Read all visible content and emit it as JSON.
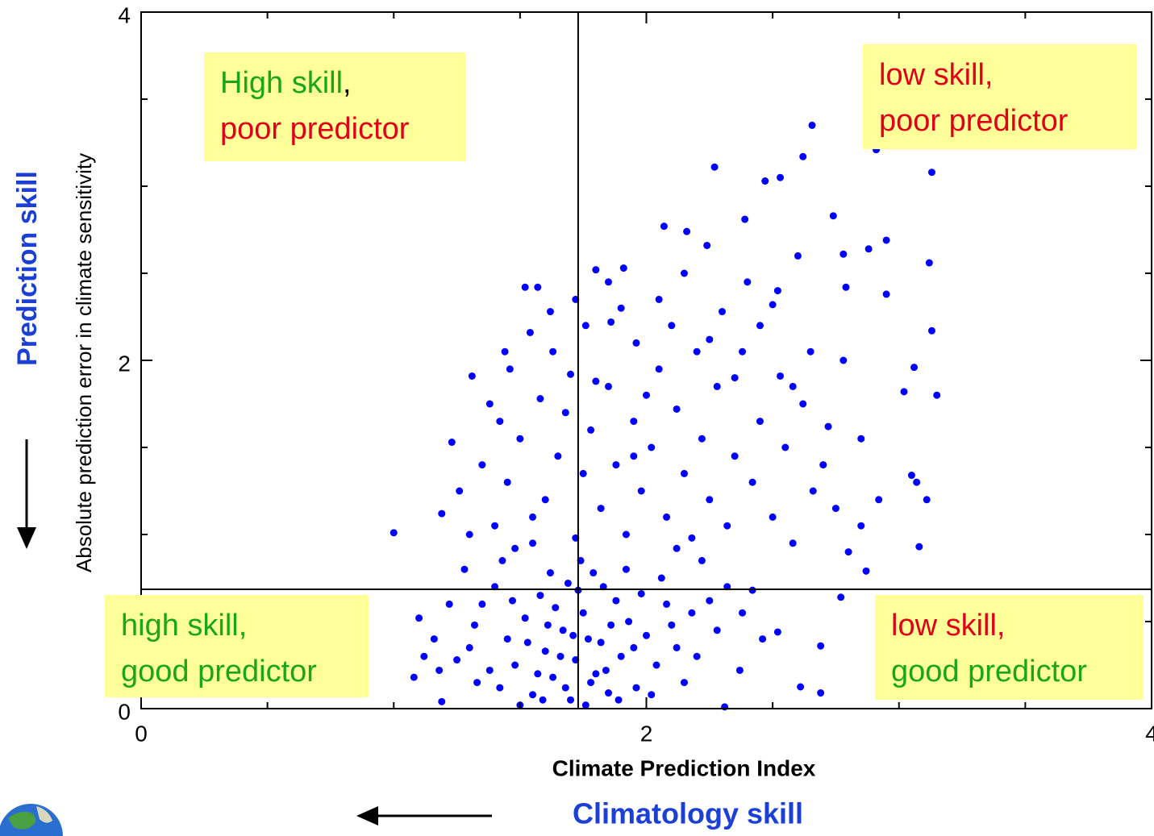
{
  "chart_data": {
    "type": "scatter",
    "xlabel": "Climate Prediction Index",
    "ylabel": "Absolute prediction error in climate sensitivity",
    "xlim": [
      0,
      4
    ],
    "ylim": [
      0,
      4
    ],
    "xticks": [
      0,
      2,
      4
    ],
    "yticks": [
      0,
      2,
      4
    ],
    "xminorticks": [
      0.5,
      1,
      1.5,
      2.5,
      3,
      3.5
    ],
    "yminorticks": [
      0.5,
      1,
      1.5,
      2.5,
      3,
      3.5
    ],
    "reference_lines": {
      "x": 1.73,
      "y": 0.685
    },
    "color": "#0000ff",
    "x": [
      2.656,
      2.27,
      2.62,
      3.13,
      2.47,
      2.53,
      2.91,
      2.39,
      2.74,
      2.07,
      2.16,
      2.24,
      2.95,
      2.88,
      2.78,
      3.12,
      1.8,
      1.91,
      1.52,
      1.57,
      1.72,
      2.79,
      2.95,
      1.54,
      3.13,
      3.06,
      3.15,
      3.02,
      2.53,
      1.31,
      1.23,
      1.0,
      1.19,
      3.08,
      2.69,
      2.69,
      2.61,
      2.31,
      1.19,
      2.87,
      2.77,
      3.05,
      3.07,
      3.11,
      2.52,
      2.37,
      1.42,
      1.48,
      1.55,
      1.6,
      1.63,
      1.67,
      1.7,
      1.72,
      1.75,
      1.78,
      1.82,
      1.85,
      1.88,
      1.52,
      1.45,
      1.38,
      1.35,
      1.4,
      1.58,
      1.62,
      1.66,
      1.69,
      1.74,
      1.77,
      1.8,
      1.83,
      1.9,
      1.93,
      1.96,
      2.0,
      2.04,
      2.08,
      2.12,
      2.15,
      2.18,
      1.5,
      1.57,
      1.64,
      1.71,
      1.76,
      1.86,
      1.92,
      1.98,
      1.3,
      1.33,
      1.25,
      1.18,
      1.12,
      1.08,
      1.1,
      1.16,
      1.22,
      1.28,
      1.32,
      1.43,
      1.47,
      1.53,
      1.59,
      1.61,
      1.68,
      1.73,
      1.79,
      1.84,
      1.89,
      1.95,
      2.02,
      2.06,
      2.1,
      2.2,
      2.25,
      2.28,
      2.32,
      2.38,
      2.42,
      2.46,
      2.22,
      1.4,
      1.45,
      1.5,
      1.55,
      1.6,
      1.65,
      1.68,
      1.72,
      1.75,
      1.78,
      1.82,
      1.85,
      1.88,
      1.92,
      1.95,
      1.98,
      2.02,
      2.05,
      2.08,
      2.12,
      2.15,
      2.18,
      2.22,
      2.25,
      2.28,
      2.32,
      2.35,
      2.38,
      2.42,
      2.45,
      2.5,
      2.55,
      2.58,
      2.62,
      2.66,
      2.7,
      2.75,
      2.8,
      2.85,
      1.35,
      1.42,
      1.48,
      1.58,
      1.63,
      1.7,
      1.76,
      1.8,
      1.86,
      1.9,
      1.96,
      2.0,
      2.05,
      2.1,
      2.2,
      2.3,
      2.35,
      2.45,
      2.52,
      2.58,
      2.65,
      2.72,
      2.78,
      2.85,
      2.92,
      1.46,
      1.38,
      1.26,
      1.3,
      1.44,
      1.62,
      1.85,
      2.15,
      2.4,
      2.6,
      2.5,
      2.25,
      1.95,
      2.12,
      1.55
    ],
    "y": [
      3.35,
      3.11,
      3.17,
      3.08,
      3.03,
      3.05,
      3.21,
      2.81,
      2.83,
      2.77,
      2.74,
      2.66,
      2.69,
      2.64,
      2.61,
      2.56,
      2.52,
      2.53,
      2.42,
      2.42,
      2.35,
      2.42,
      2.38,
      2.16,
      2.17,
      1.96,
      1.8,
      1.82,
      1.91,
      1.91,
      1.53,
      1.01,
      1.12,
      0.93,
      0.36,
      0.09,
      0.125,
      0.01,
      0.04,
      0.79,
      0.64,
      1.34,
      1.3,
      1.2,
      0.44,
      0.22,
      0.12,
      0.25,
      0.08,
      0.33,
      0.18,
      0.45,
      0.05,
      0.28,
      0.55,
      0.15,
      0.38,
      0.09,
      0.62,
      0.52,
      0.4,
      0.22,
      0.6,
      0.7,
      0.65,
      0.78,
      0.3,
      0.72,
      0.85,
      0.4,
      0.2,
      0.7,
      0.3,
      0.5,
      0.12,
      0.42,
      0.25,
      0.6,
      0.35,
      0.15,
      0.55,
      0.02,
      0.2,
      0.58,
      0.42,
      0.02,
      0.48,
      0.8,
      0.66,
      0.35,
      0.15,
      0.28,
      0.22,
      0.3,
      0.18,
      0.52,
      0.4,
      0.6,
      0.8,
      0.48,
      0.85,
      0.62,
      0.38,
      0.05,
      0.48,
      0.12,
      0.68,
      0.78,
      0.22,
      0.05,
      0.35,
      0.08,
      0.75,
      0.48,
      0.3,
      0.62,
      0.45,
      0.7,
      0.55,
      0.68,
      0.4,
      0.85,
      1.05,
      1.3,
      1.55,
      0.95,
      1.2,
      1.45,
      1.7,
      0.98,
      1.35,
      1.6,
      1.15,
      1.85,
      1.4,
      1.0,
      1.65,
      1.25,
      1.5,
      1.95,
      1.1,
      1.72,
      1.35,
      0.98,
      1.55,
      1.2,
      1.85,
      1.05,
      1.45,
      2.05,
      1.3,
      1.65,
      1.1,
      1.5,
      0.95,
      1.75,
      1.25,
      1.4,
      1.15,
      0.9,
      1.05,
      1.4,
      1.65,
      0.92,
      1.78,
      2.05,
      1.92,
      2.2,
      1.88,
      2.22,
      2.3,
      2.1,
      1.8,
      2.35,
      2.2,
      2.05,
      2.28,
      1.9,
      2.2,
      2.4,
      1.85,
      2.05,
      1.62,
      2.0,
      1.55,
      1.2,
      1.95,
      1.75,
      1.25,
      1.0,
      2.05,
      2.28,
      2.45,
      2.5,
      2.45,
      2.6,
      2.32,
      2.12,
      1.45,
      0.92,
      1.1
    ]
  },
  "quadrant_labels": [
    {
      "lines": [
        [
          {
            "text": "High skill",
            "color": "#1aa51a"
          },
          {
            "text": ",",
            "color": "#000000"
          }
        ],
        [
          {
            "text": "poor predictor",
            "color": "#e0001a"
          }
        ]
      ]
    },
    {
      "lines": [
        [
          {
            "text": "low skill,",
            "color": "#e0001a"
          }
        ],
        [
          {
            "text": "poor predictor",
            "color": "#e0001a"
          }
        ]
      ]
    },
    {
      "lines": [
        [
          {
            "text": "high skill,",
            "color": "#1aa51a"
          }
        ],
        [
          {
            "text": "good predictor",
            "color": "#1aa51a"
          }
        ]
      ]
    },
    {
      "lines": [
        [
          {
            "text": "low skill,",
            "color": "#e0001a"
          }
        ],
        [
          {
            "text": "good predictor",
            "color": "#1aa51a"
          }
        ]
      ]
    }
  ],
  "side_labels": {
    "vertical": "Prediction skill",
    "horizontal": "Climatology skill",
    "color": "#1c3fd6"
  }
}
